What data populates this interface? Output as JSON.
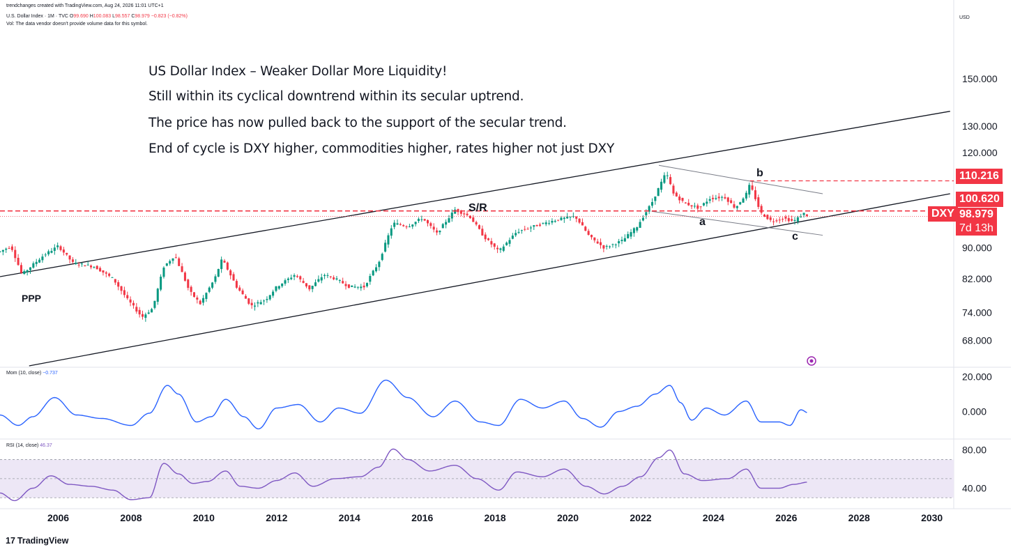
{
  "header": {
    "credit": "trendchanges created with TradingView.com, Aug 24, 2026 11:01 UTC+1",
    "symbol_line_prefix": "U.S. Dollar Index · 1M · TVC",
    "ohlc": {
      "o_label": "O",
      "o": "99.690",
      "h_label": "H",
      "h": "100.083",
      "l_label": "L",
      "l": "98.557",
      "c_label": "C",
      "c": "98.979",
      "change": "−0.823 (−0.82%)"
    },
    "vol_note": "Vol: The data vendor doesn't provide volume data for this symbol."
  },
  "currency": "USD",
  "annotations": [
    "US Dollar Index – Weaker Dollar More Liquidity!",
    "Still within its cyclical downtrend within its secular uptrend.",
    "The price has now pulled back to the support of the secular trend.",
    "End of cycle is DXY higher, commodities higher, rates higher not just DXY"
  ],
  "chart_labels": {
    "ppp": "PPP",
    "sr": "S/R",
    "a": "a",
    "b": "b",
    "c": "c"
  },
  "price_tags": {
    "level_1": "110.216",
    "level_2": "100.620",
    "last": "98.979",
    "symbol": "DXY",
    "countdown": "7d 13h"
  },
  "indicators": {
    "mom": {
      "label": "Mom (10, close)",
      "value": "−0.737"
    },
    "rsi": {
      "label": "RSI (14, close)",
      "value": "46.37"
    }
  },
  "branding": {
    "logo_mark": "17",
    "logo_text": "TradingView"
  },
  "colors": {
    "up": "#089981",
    "down": "#f23645",
    "mom_line": "#2962ff",
    "rsi_line": "#7e57c2",
    "rsi_band": "#ede7f6",
    "trendline": "#131722",
    "channel_line": "#787b86",
    "dashed_level": "#f23645"
  },
  "chart_data": [
    {
      "type": "candlestick",
      "title": "U.S. Dollar Index · 1M · TVC",
      "yscale": "log",
      "ylim": [
        63,
        175
      ],
      "xlim": [
        2004.4,
        2030.6
      ],
      "y_ticks": [
        "150.000",
        "130.000",
        "120.000",
        "90.000",
        "82.000",
        "74.000",
        "68.000"
      ],
      "x_ticks": [
        "2006",
        "2008",
        "2010",
        "2012",
        "2014",
        "2016",
        "2018",
        "2020",
        "2022",
        "2024",
        "2026",
        "2028",
        "2030"
      ],
      "trend_path": [
        [
          2004.4,
          89.0
        ],
        [
          2004.7,
          90.5
        ],
        [
          2005.0,
          83.0
        ],
        [
          2005.6,
          88.0
        ],
        [
          2006.0,
          90.5
        ],
        [
          2006.4,
          86.0
        ],
        [
          2007.0,
          85.0
        ],
        [
          2007.5,
          82.0
        ],
        [
          2007.9,
          77.0
        ],
        [
          2008.3,
          73.0
        ],
        [
          2008.6,
          75.0
        ],
        [
          2008.9,
          85.0
        ],
        [
          2009.2,
          88.0
        ],
        [
          2009.6,
          79.0
        ],
        [
          2009.9,
          76.0
        ],
        [
          2010.3,
          82.0
        ],
        [
          2010.5,
          87.0
        ],
        [
          2010.9,
          80.0
        ],
        [
          2011.3,
          75.5
        ],
        [
          2011.7,
          77.0
        ],
        [
          2012.0,
          80.0
        ],
        [
          2012.5,
          83.0
        ],
        [
          2012.9,
          79.5
        ],
        [
          2013.3,
          83.0
        ],
        [
          2013.6,
          82.0
        ],
        [
          2014.0,
          80.0
        ],
        [
          2014.4,
          80.0
        ],
        [
          2014.8,
          86.0
        ],
        [
          2015.2,
          97.0
        ],
        [
          2015.6,
          96.0
        ],
        [
          2016.0,
          98.5
        ],
        [
          2016.4,
          94.0
        ],
        [
          2016.9,
          101.0
        ],
        [
          2017.3,
          99.0
        ],
        [
          2017.7,
          93.0
        ],
        [
          2018.1,
          89.0
        ],
        [
          2018.6,
          94.5
        ],
        [
          2019.2,
          96.5
        ],
        [
          2019.7,
          98.0
        ],
        [
          2020.2,
          99.0
        ],
        [
          2020.6,
          93.0
        ],
        [
          2021.0,
          90.0
        ],
        [
          2021.5,
          92.0
        ],
        [
          2021.9,
          96.0
        ],
        [
          2022.3,
          103.0
        ],
        [
          2022.7,
          113.0
        ],
        [
          2022.9,
          106.0
        ],
        [
          2023.2,
          103.0
        ],
        [
          2023.6,
          101.5
        ],
        [
          2023.9,
          104.5
        ],
        [
          2024.3,
          105.0
        ],
        [
          2024.6,
          101.5
        ],
        [
          2024.9,
          106.0
        ],
        [
          2025.0,
          109.0
        ],
        [
          2025.3,
          100.0
        ],
        [
          2025.6,
          97.5
        ],
        [
          2025.9,
          98.5
        ],
        [
          2026.2,
          97.5
        ],
        [
          2026.5,
          100.0
        ],
        [
          2026.6,
          98.979
        ]
      ],
      "trendlines": {
        "secular_upper": [
          [
            2004.4,
            82.5
          ],
          [
            2030.5,
            136.0
          ]
        ],
        "secular_lower": [
          [
            2005.2,
            63.0
          ],
          [
            2030.5,
            106.0
          ]
        ],
        "cyclical_upper": [
          [
            2022.5,
            115.5
          ],
          [
            2027.0,
            106.0
          ]
        ],
        "cyclical_lower": [
          [
            2022.3,
            100.5
          ],
          [
            2027.0,
            93.5
          ]
        ]
      },
      "levels": [
        110.216,
        100.62,
        98.979
      ]
    },
    {
      "type": "line",
      "title": "Mom (10, close)",
      "ylim": [
        -15,
        25
      ],
      "y_ticks": [
        "20.000",
        "0.000"
      ],
      "series": [
        {
          "name": "Mom (10, close)",
          "points": [
            [
              2004.4,
              -2
            ],
            [
              2004.9,
              -8
            ],
            [
              2005.3,
              -3
            ],
            [
              2005.9,
              8
            ],
            [
              2006.5,
              -2
            ],
            [
              2007.2,
              -4
            ],
            [
              2008.0,
              -8
            ],
            [
              2008.5,
              -1
            ],
            [
              2009.0,
              15
            ],
            [
              2009.3,
              10
            ],
            [
              2009.8,
              -6
            ],
            [
              2010.2,
              -3
            ],
            [
              2010.6,
              7
            ],
            [
              2011.1,
              -3
            ],
            [
              2011.5,
              -10
            ],
            [
              2012.0,
              2
            ],
            [
              2012.6,
              4
            ],
            [
              2013.2,
              -6
            ],
            [
              2013.7,
              2
            ],
            [
              2014.3,
              -1
            ],
            [
              2015.0,
              18
            ],
            [
              2015.6,
              8
            ],
            [
              2016.3,
              -3
            ],
            [
              2016.9,
              6
            ],
            [
              2017.6,
              -6
            ],
            [
              2018.1,
              -8
            ],
            [
              2018.7,
              7
            ],
            [
              2019.3,
              2
            ],
            [
              2019.9,
              6
            ],
            [
              2020.4,
              -4
            ],
            [
              2020.9,
              -9
            ],
            [
              2021.4,
              0
            ],
            [
              2021.9,
              3
            ],
            [
              2022.4,
              10
            ],
            [
              2022.8,
              15
            ],
            [
              2023.1,
              5
            ],
            [
              2023.4,
              -5
            ],
            [
              2023.8,
              2
            ],
            [
              2024.3,
              -2
            ],
            [
              2024.9,
              6
            ],
            [
              2025.3,
              -6
            ],
            [
              2025.8,
              -6
            ],
            [
              2026.1,
              -8
            ],
            [
              2026.4,
              1
            ],
            [
              2026.6,
              -0.737
            ]
          ]
        }
      ]
    },
    {
      "type": "line",
      "title": "RSI (14, close)",
      "ylim": [
        20,
        90
      ],
      "y_ticks": [
        "80.00",
        "40.00"
      ],
      "bands": [
        30,
        50,
        70
      ],
      "series": [
        {
          "name": "RSI (14, close)",
          "points": [
            [
              2004.4,
              35
            ],
            [
              2004.8,
              27
            ],
            [
              2005.3,
              40
            ],
            [
              2005.8,
              53
            ],
            [
              2006.3,
              44
            ],
            [
              2006.9,
              42
            ],
            [
              2007.5,
              38
            ],
            [
              2008.0,
              28
            ],
            [
              2008.5,
              30
            ],
            [
              2008.9,
              66
            ],
            [
              2009.3,
              55
            ],
            [
              2009.7,
              45
            ],
            [
              2010.1,
              47
            ],
            [
              2010.6,
              58
            ],
            [
              2011.0,
              42
            ],
            [
              2011.5,
              40
            ],
            [
              2012.0,
              48
            ],
            [
              2012.5,
              56
            ],
            [
              2013.0,
              42
            ],
            [
              2013.6,
              50
            ],
            [
              2014.3,
              52
            ],
            [
              2014.8,
              62
            ],
            [
              2015.2,
              81
            ],
            [
              2015.6,
              70
            ],
            [
              2016.2,
              58
            ],
            [
              2016.9,
              64
            ],
            [
              2017.5,
              50
            ],
            [
              2018.1,
              38
            ],
            [
              2018.6,
              57
            ],
            [
              2019.3,
              52
            ],
            [
              2019.9,
              60
            ],
            [
              2020.5,
              42
            ],
            [
              2021.0,
              34
            ],
            [
              2021.5,
              42
            ],
            [
              2022.0,
              52
            ],
            [
              2022.5,
              72
            ],
            [
              2022.8,
              80
            ],
            [
              2023.2,
              55
            ],
            [
              2023.7,
              48
            ],
            [
              2024.4,
              50
            ],
            [
              2024.9,
              60
            ],
            [
              2025.3,
              40
            ],
            [
              2025.8,
              40
            ],
            [
              2026.2,
              44
            ],
            [
              2026.6,
              46.37
            ]
          ]
        }
      ]
    }
  ]
}
